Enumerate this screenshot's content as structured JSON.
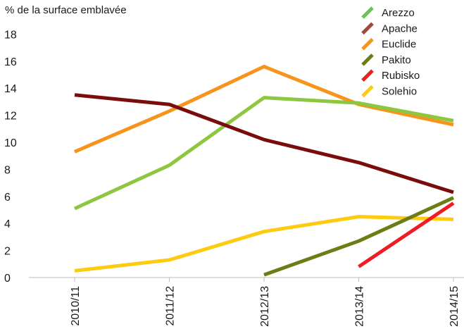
{
  "chart_data": {
    "type": "line",
    "ylabel": "% de la surface emblavée",
    "categories": [
      "2010/11",
      "2011/12",
      "2012/13",
      "2013/14",
      "2014/15"
    ],
    "ylim": [
      0,
      18
    ],
    "yticks": [
      0,
      2,
      4,
      6,
      8,
      10,
      12,
      14,
      16,
      18
    ],
    "grid": false,
    "legend_position": "top-right",
    "series": [
      {
        "name": "Arezzo",
        "color": "#8dc63f",
        "values": [
          5.1,
          8.3,
          13.3,
          12.9,
          11.6
        ]
      },
      {
        "name": "Apache",
        "color": "#7b0c0c",
        "values": [
          13.5,
          12.8,
          10.2,
          8.5,
          6.3
        ]
      },
      {
        "name": "Euclide",
        "color": "#f7941d",
        "values": [
          9.3,
          12.3,
          15.6,
          12.8,
          11.3
        ]
      },
      {
        "name": "Pakito",
        "color": "#6b7d14",
        "values": [
          null,
          null,
          0.2,
          2.7,
          5.9
        ]
      },
      {
        "name": "Rubisko",
        "color": "#ee1c25",
        "values": [
          null,
          null,
          null,
          0.8,
          5.5
        ]
      },
      {
        "name": "Solehio",
        "color": "#fdcb10",
        "values": [
          0.5,
          1.3,
          3.4,
          4.5,
          4.3
        ]
      }
    ],
    "legend_swatch_colors": [
      "#6dbf5a",
      "#9c4a3c",
      "#f7941d",
      "#6b7d14",
      "#ee1c25",
      "#fdcb10"
    ]
  }
}
